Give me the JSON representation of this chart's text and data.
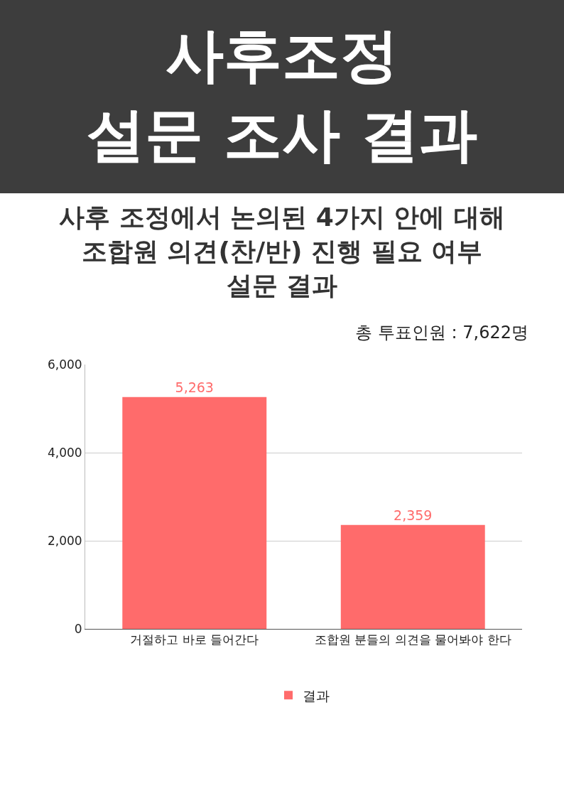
{
  "chart_data": {
    "type": "bar",
    "title": "사후조정\n설문 조사 결과",
    "subtitle": "사후 조정에서 논의된 4가지 안에 대해\n조합원 의견(찬/반) 진행 필요 여부\n설문 결과",
    "annotations": [
      "총 투표인원 : 7,622명"
    ],
    "categories": [
      "거절하고 바로 들어간다",
      "조합원 분들의 의견을 물어봐야 한다"
    ],
    "series": [
      {
        "name": "결과",
        "color": "#ff6b6b",
        "values": [
          5263,
          2359
        ],
        "value_labels": [
          "5,263",
          "2,359"
        ]
      }
    ],
    "ylim": [
      0,
      6000
    ],
    "yticks": [
      {
        "value": 0,
        "label": "0"
      },
      {
        "value": 2000,
        "label": "2,000"
      },
      {
        "value": 4000,
        "label": "4,000"
      },
      {
        "value": 6000,
        "label": "6,000"
      }
    ],
    "grid": "y",
    "legend": "bottom"
  }
}
